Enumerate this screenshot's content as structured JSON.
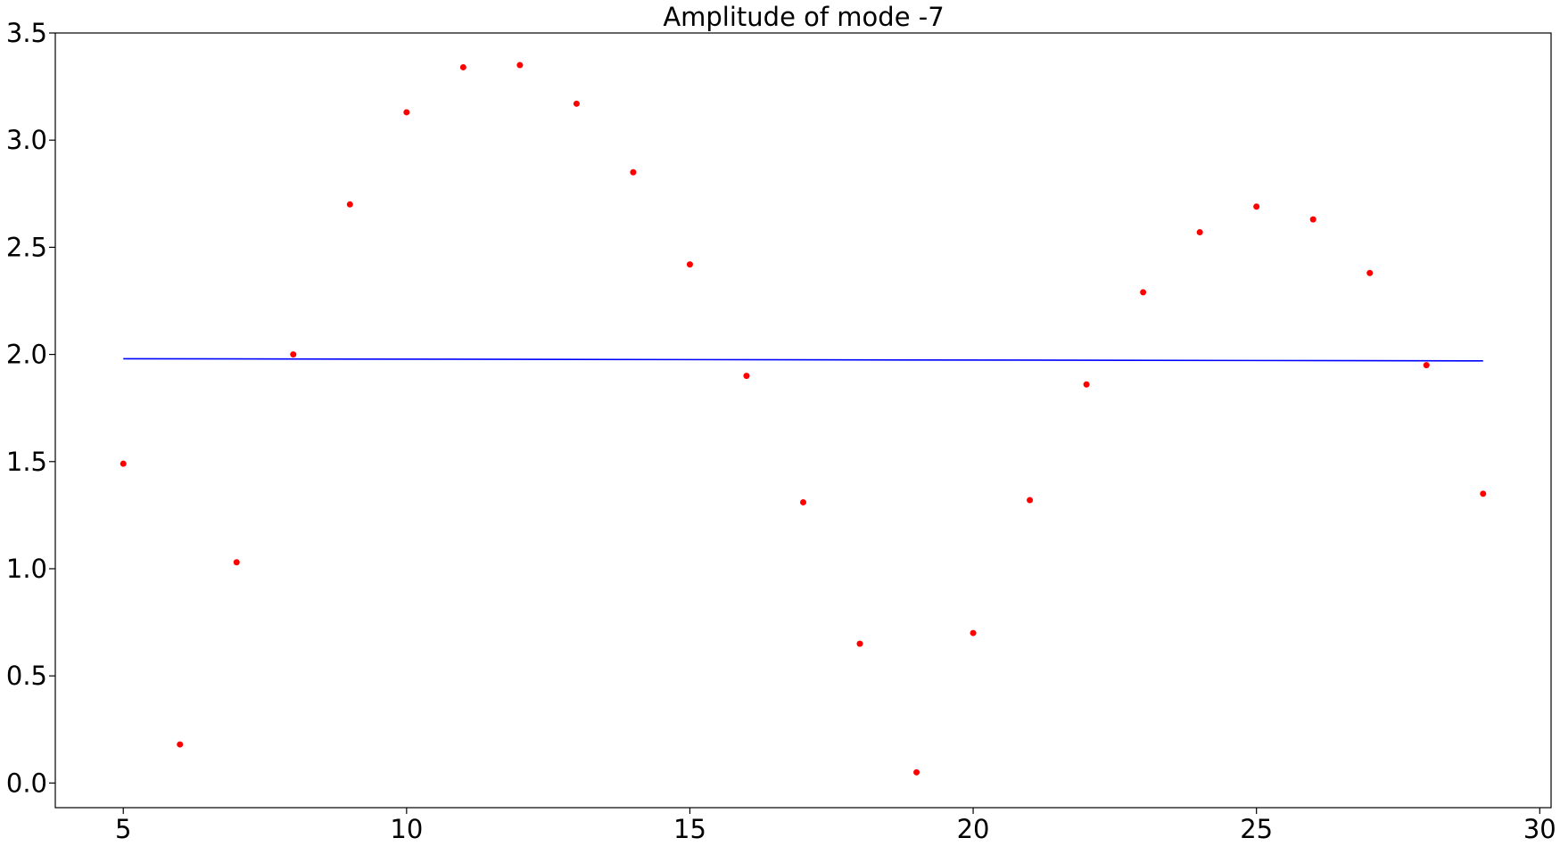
{
  "chart_data": {
    "type": "scatter",
    "title": "Amplitude of mode -7",
    "xlabel": "",
    "ylabel": "",
    "xlim": [
      3.8,
      30.2
    ],
    "ylim": [
      -0.115,
      3.5
    ],
    "xticks": [
      5,
      10,
      15,
      20,
      25,
      30
    ],
    "yticks": [
      0.0,
      0.5,
      1.0,
      1.5,
      2.0,
      2.5,
      3.0,
      3.5
    ],
    "xtick_labels": [
      "5",
      "10",
      "15",
      "20",
      "25",
      "30"
    ],
    "ytick_labels": [
      "0.0",
      "0.5",
      "1.0",
      "1.5",
      "2.0",
      "2.5",
      "3.0",
      "3.5"
    ],
    "grid": false,
    "series": [
      {
        "type": "scatter",
        "color": "#ff0000",
        "x": [
          5,
          6,
          7,
          8,
          9,
          10,
          11,
          12,
          13,
          14,
          15,
          16,
          17,
          18,
          19,
          20,
          21,
          22,
          23,
          24,
          25,
          26,
          27,
          28,
          29
        ],
        "y": [
          1.49,
          0.18,
          1.03,
          2.0,
          2.7,
          3.13,
          3.34,
          3.35,
          3.17,
          2.85,
          2.42,
          1.9,
          1.31,
          0.65,
          0.05,
          0.7,
          1.32,
          1.86,
          2.29,
          2.57,
          2.69,
          2.63,
          2.38,
          1.95,
          1.35
        ]
      },
      {
        "type": "line",
        "color": "#0000ff",
        "x": [
          5,
          29
        ],
        "y": [
          1.98,
          1.97
        ]
      }
    ]
  }
}
